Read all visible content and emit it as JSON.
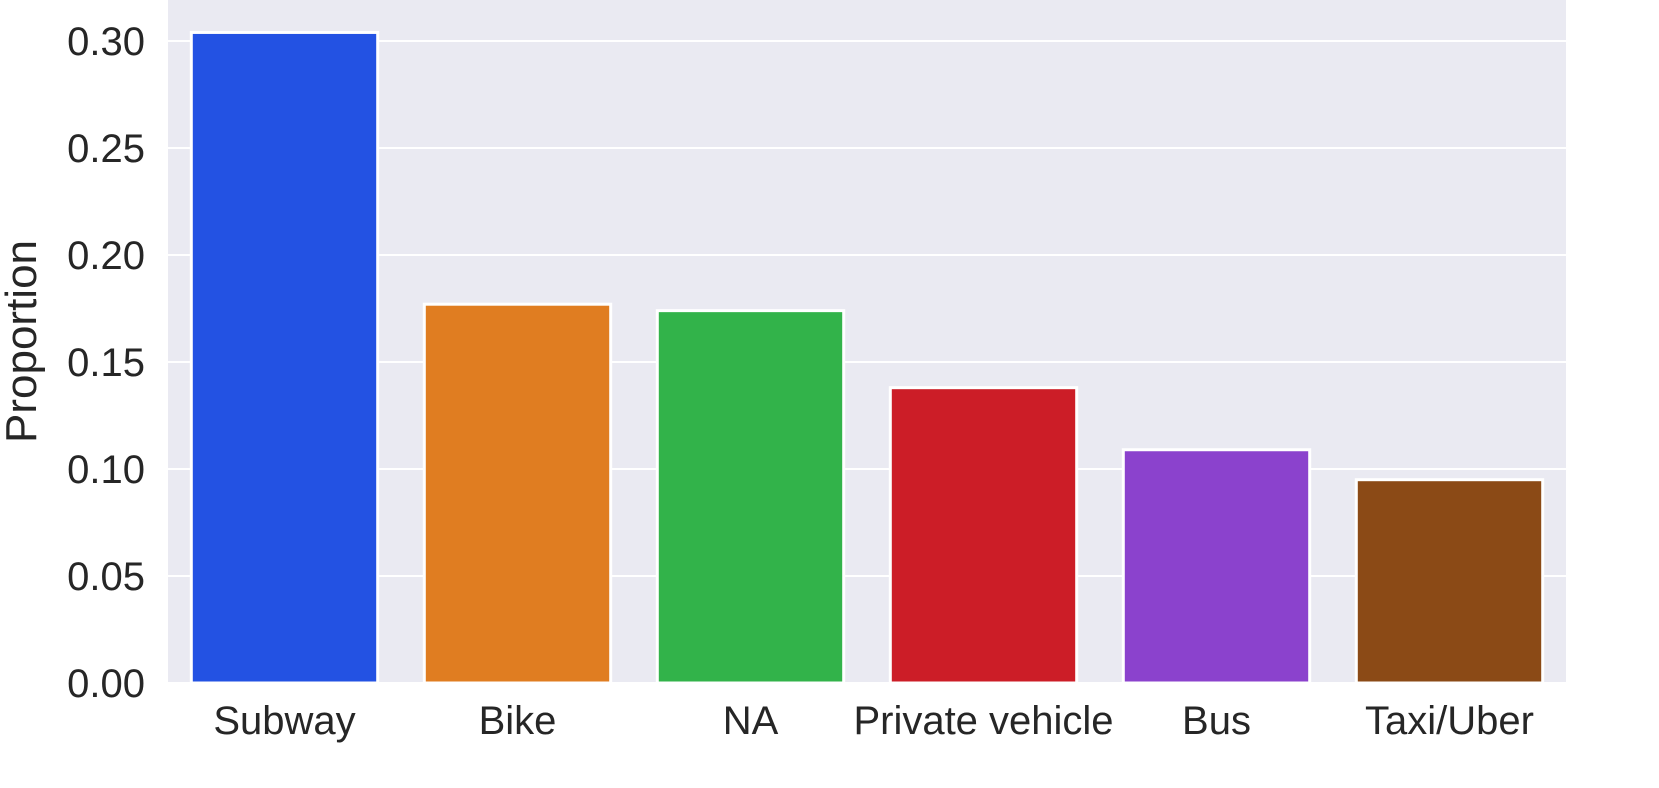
{
  "chart_data": {
    "type": "bar",
    "categories": [
      "Subway",
      "Bike",
      "NA",
      "Private vehicle",
      "Bus",
      "Taxi/Uber"
    ],
    "values": [
      0.304,
      0.177,
      0.174,
      0.138,
      0.109,
      0.095
    ],
    "colors": [
      "#2352e3",
      "#e07d21",
      "#32b34a",
      "#cc1d27",
      "#8b42cd",
      "#8b4a16"
    ],
    "xlabel": "",
    "ylabel": "Proportion",
    "ylim": [
      0,
      0.32
    ],
    "yticks": [
      0.0,
      0.05,
      0.1,
      0.15,
      0.2,
      0.25,
      0.3
    ],
    "ytick_labels": [
      "0.00",
      "0.05",
      "0.10",
      "0.15",
      "0.20",
      "0.25",
      "0.30"
    ],
    "grid": true,
    "background": "#eaeaf2",
    "grid_color": "#ffffff"
  }
}
